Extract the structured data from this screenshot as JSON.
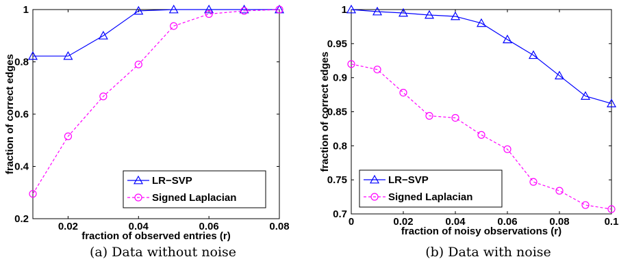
{
  "chart_data": [
    {
      "type": "line",
      "caption": "(a) Data without noise",
      "xlabel": "fraction of observed entries (r)",
      "ylabel": "fraction of correct edges",
      "xlim": [
        0.01,
        0.08
      ],
      "ylim": [
        0.2,
        1
      ],
      "xticks": [
        0.02,
        0.04,
        0.06,
        0.08
      ],
      "xtick_labels": [
        "0.02",
        "0.04",
        "0.06",
        "0.08"
      ],
      "yticks": [
        0.2,
        0.4,
        0.6,
        0.8,
        1
      ],
      "ytick_labels": [
        "0.2",
        "0.4",
        "0.6",
        "0.8",
        "1"
      ],
      "x": [
        0.01,
        0.02,
        0.03,
        0.04,
        0.05,
        0.06,
        0.07,
        0.08
      ],
      "series": [
        {
          "name": "LR−SVP",
          "color": "#0000ff",
          "dash": "solid",
          "marker": "triangle",
          "values": [
            0.822,
            0.822,
            0.9,
            0.995,
            1.0,
            1.0,
            1.0,
            1.0
          ]
        },
        {
          "name": "Signed Laplacian",
          "color": "#ff00ff",
          "dash": "dashed",
          "marker": "circle",
          "values": [
            0.295,
            0.515,
            0.668,
            0.79,
            0.937,
            0.983,
            0.995,
            1.0
          ]
        }
      ],
      "legend_position": "bottom-right",
      "grid": false
    },
    {
      "type": "line",
      "caption": "(b) Data with noise",
      "xlabel": "fraction of noisy observations (r)",
      "ylabel": "fraction of correct edges",
      "xlim": [
        0,
        0.1
      ],
      "ylim": [
        0.7,
        1
      ],
      "xticks": [
        0,
        0.02,
        0.04,
        0.06,
        0.08,
        0.1
      ],
      "xtick_labels": [
        "0",
        "0.02",
        "0.04",
        "0.06",
        "0.08",
        "0.1"
      ],
      "yticks": [
        0.7,
        0.75,
        0.8,
        0.85,
        0.9,
        0.95,
        1
      ],
      "ytick_labels": [
        "0.7",
        "0.75",
        "0.8",
        "0.85",
        "0.9",
        "0.95",
        "1"
      ],
      "x": [
        0,
        0.01,
        0.02,
        0.03,
        0.04,
        0.05,
        0.06,
        0.07,
        0.08,
        0.09,
        0.1
      ],
      "series": [
        {
          "name": "LR−SVP",
          "color": "#0000ff",
          "dash": "solid",
          "marker": "triangle",
          "values": [
            1.0,
            0.997,
            0.995,
            0.992,
            0.99,
            0.98,
            0.956,
            0.933,
            0.903,
            0.873,
            0.862
          ]
        },
        {
          "name": "Signed Laplacian",
          "color": "#ff00ff",
          "dash": "dashed",
          "marker": "circle",
          "values": [
            0.92,
            0.912,
            0.878,
            0.844,
            0.841,
            0.816,
            0.795,
            0.747,
            0.734,
            0.713,
            0.707
          ]
        }
      ],
      "legend_position": "bottom-left",
      "grid": false
    }
  ]
}
